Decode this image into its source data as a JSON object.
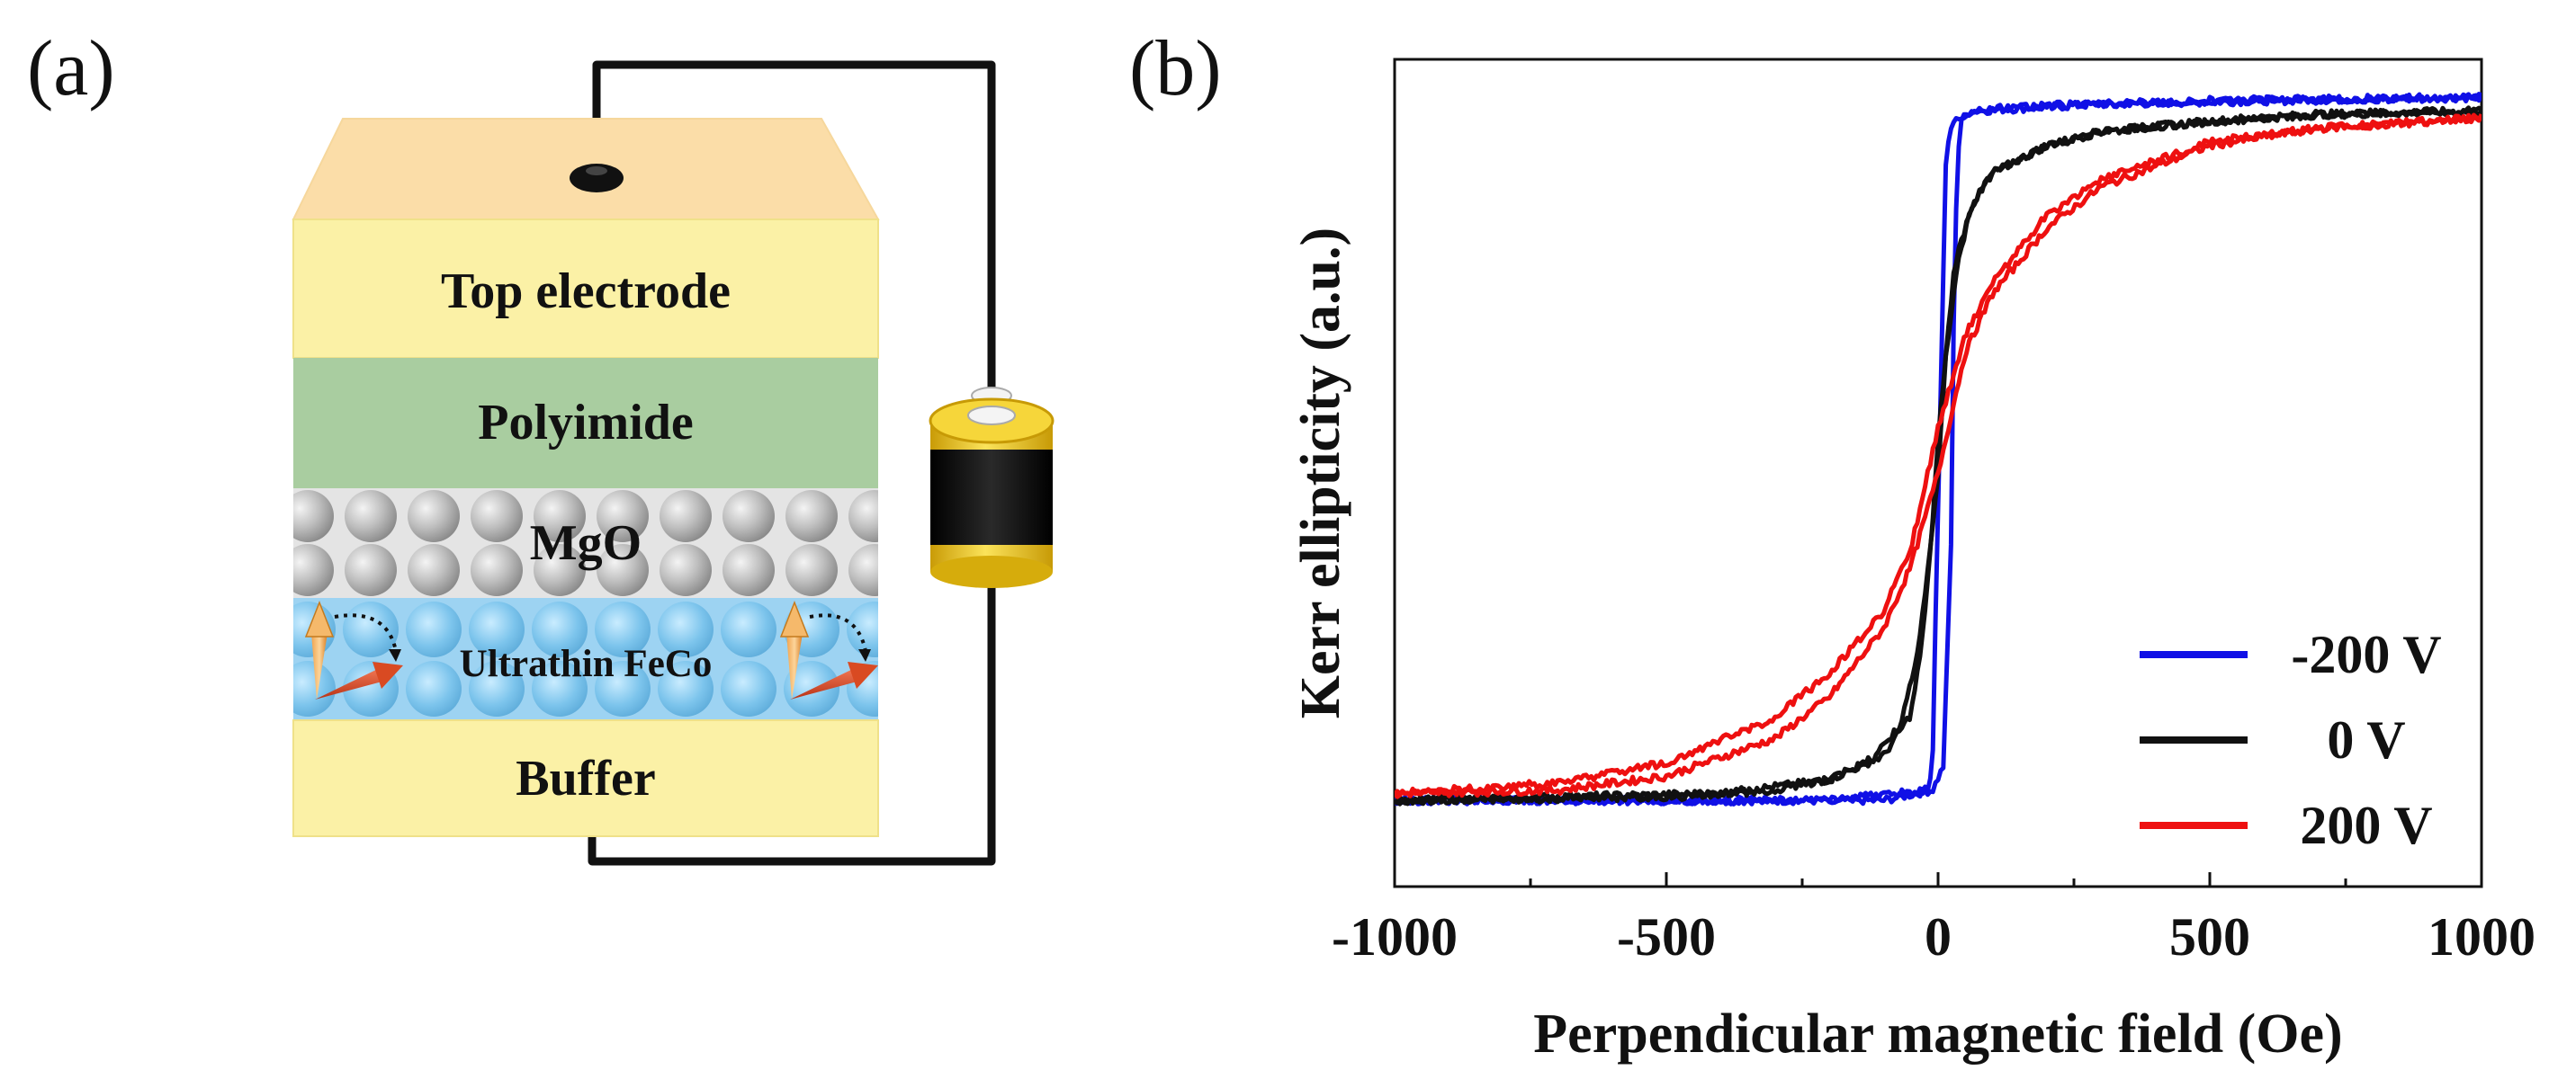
{
  "panel_a": {
    "label": "(a)",
    "layers": {
      "top_electrode": "Top electrode",
      "polyimide": "Polyimide",
      "mgo": "MgO",
      "ferromagnet": "Ultrathin FeCo",
      "buffer": "Buffer"
    },
    "colors": {
      "top_face": "#FBDDA8",
      "electrode": "#FBF1A6",
      "polyimide": "#A9CDA0",
      "mgo": "#E6E6E6",
      "ferromagnet": "#9DD3F2",
      "buffer": "#FBF1A6",
      "wire": "#111111",
      "battery_cap": "#F0C816",
      "battery_body": "#111111"
    }
  },
  "panel_b": {
    "label": "(b)"
  },
  "chart_data": {
    "type": "line",
    "title": "",
    "xlabel": "Perpendicular magnetic field (Oe)",
    "ylabel": "Kerr ellipticity (a.u.)",
    "xlim": [
      -1000,
      1000
    ],
    "ylim": [
      -1.25,
      1.15
    ],
    "xticks": [
      -1000,
      -500,
      0,
      500,
      1000
    ],
    "xtick_labels": [
      "-1000",
      "-500",
      "0",
      "500",
      "1000"
    ],
    "yticks_shown": false,
    "grid": false,
    "legend_position": "lower-right",
    "series": [
      {
        "name": "-200 V",
        "color": "#1010E6",
        "branch_up_x": [
          -1000,
          -400,
          -100,
          -10,
          10,
          25,
          30,
          40,
          60,
          300,
          600,
          1000
        ],
        "branch_up_y": [
          -1.0,
          -1.0,
          -1.0,
          -0.97,
          -0.9,
          -0.2,
          0.6,
          0.97,
          1.0,
          1.02,
          1.03,
          1.04
        ],
        "branch_down_x": [
          1000,
          500,
          100,
          30,
          15,
          5,
          -5,
          -10,
          -20,
          -200,
          -1000
        ],
        "branch_down_y": [
          1.04,
          1.03,
          1.01,
          0.98,
          0.9,
          0.2,
          -0.5,
          -0.9,
          -0.97,
          -1.0,
          -1.0
        ]
      },
      {
        "name": "0 V",
        "color": "#111111",
        "branch_up_x": [
          -1000,
          -400,
          -200,
          -100,
          -50,
          -30,
          -10,
          0,
          15,
          30,
          60,
          100,
          200,
          300,
          500,
          700,
          1000
        ],
        "branch_up_y": [
          -1.0,
          -0.98,
          -0.94,
          -0.87,
          -0.75,
          -0.55,
          -0.2,
          0.05,
          0.3,
          0.55,
          0.72,
          0.82,
          0.9,
          0.94,
          0.97,
          0.99,
          1.0
        ],
        "branch_down_x": [
          1000,
          700,
          500,
          300,
          200,
          100,
          60,
          35,
          15,
          0,
          -20,
          -40,
          -70,
          -120,
          -200,
          -300,
          -500,
          -1000
        ],
        "branch_down_y": [
          1.0,
          0.99,
          0.97,
          0.94,
          0.9,
          0.82,
          0.72,
          0.55,
          0.3,
          -0.05,
          -0.35,
          -0.6,
          -0.78,
          -0.88,
          -0.94,
          -0.97,
          -0.99,
          -1.0
        ]
      },
      {
        "name": "200 V",
        "color": "#EE1010",
        "branch_up_x": [
          -1000,
          -700,
          -500,
          -300,
          -200,
          -100,
          -50,
          0,
          50,
          100,
          200,
          300,
          500,
          700,
          1000
        ],
        "branch_up_y": [
          -0.98,
          -0.97,
          -0.93,
          -0.82,
          -0.7,
          -0.5,
          -0.32,
          -0.05,
          0.3,
          0.47,
          0.66,
          0.78,
          0.9,
          0.95,
          0.98
        ],
        "branch_down_x": [
          1000,
          700,
          500,
          300,
          200,
          100,
          50,
          0,
          -50,
          -100,
          -200,
          -300,
          -500,
          -700,
          -1000
        ],
        "branch_down_y": [
          0.98,
          0.95,
          0.91,
          0.8,
          0.7,
          0.5,
          0.35,
          0.08,
          -0.27,
          -0.45,
          -0.63,
          -0.76,
          -0.89,
          -0.95,
          -0.98
        ]
      }
    ]
  }
}
